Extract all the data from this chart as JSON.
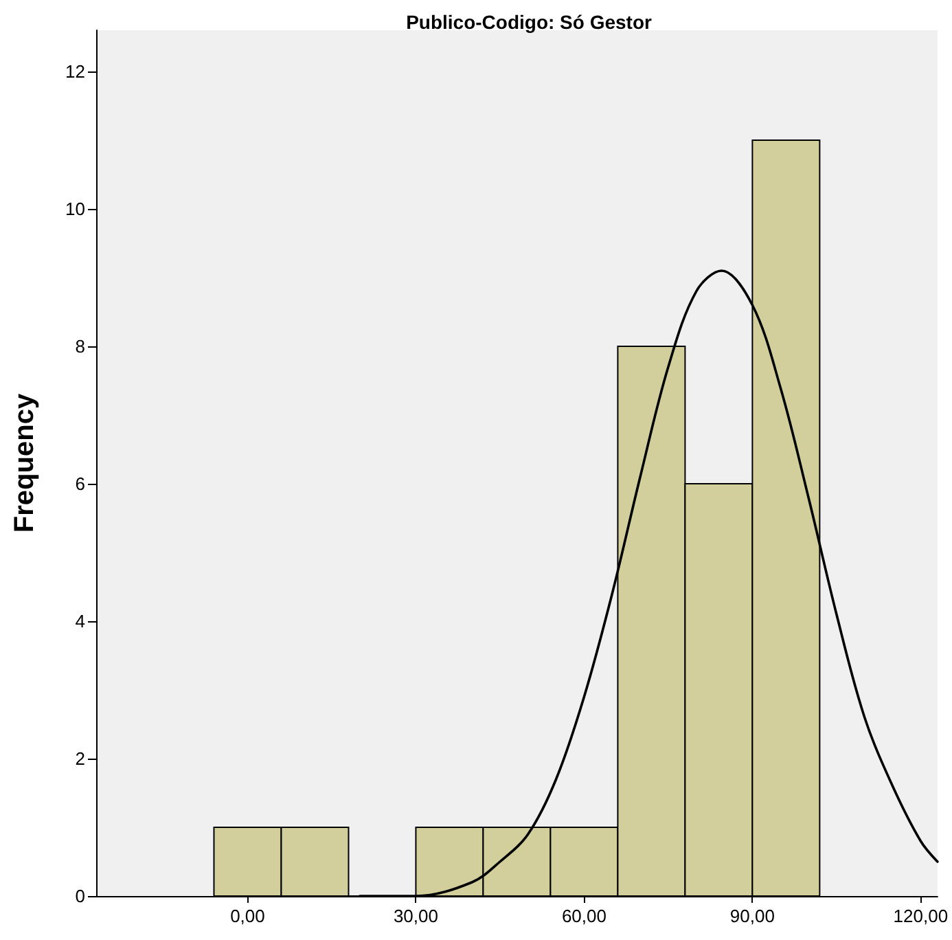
{
  "chart_data": {
    "type": "histogram",
    "title": "Publico-Codigo: Só Gestor",
    "ylabel": "Frequency",
    "bins": [
      -6,
      6,
      18,
      30,
      42,
      54,
      66,
      78,
      90,
      102
    ],
    "series": [
      {
        "color": "#d3cf9c",
        "values": [
          1,
          1,
          0,
          1,
          1,
          1,
          8,
          6,
          11
        ]
      },
      {
        "type": "line",
        "color": "#000000",
        "x": [
          20,
          30,
          40,
          45,
          50,
          55,
          60,
          65,
          70,
          75,
          80,
          84.5,
          90,
          95,
          100,
          105,
          110,
          115,
          120,
          123
        ],
        "values": [
          0,
          0,
          0.2,
          0.5,
          0.9,
          1.7,
          2.9,
          4.4,
          6.1,
          7.7,
          8.8,
          9.1,
          8.6,
          7.4,
          5.8,
          4.1,
          2.6,
          1.6,
          0.8,
          0.5
        ]
      }
    ],
    "xlim": [
      -27,
      123
    ],
    "xticks": [
      {
        "value": 0,
        "label": "0,00"
      },
      {
        "value": 30,
        "label": "30,00"
      },
      {
        "value": 60,
        "label": "60,00"
      },
      {
        "value": 90,
        "label": "90,00"
      },
      {
        "value": 120,
        "label": "120,00"
      }
    ],
    "ylim": [
      0,
      12.6
    ],
    "yticks": [
      0,
      2,
      4,
      6,
      8,
      10,
      12
    ],
    "grid": false,
    "marker": "none",
    "line_style": "solid"
  }
}
